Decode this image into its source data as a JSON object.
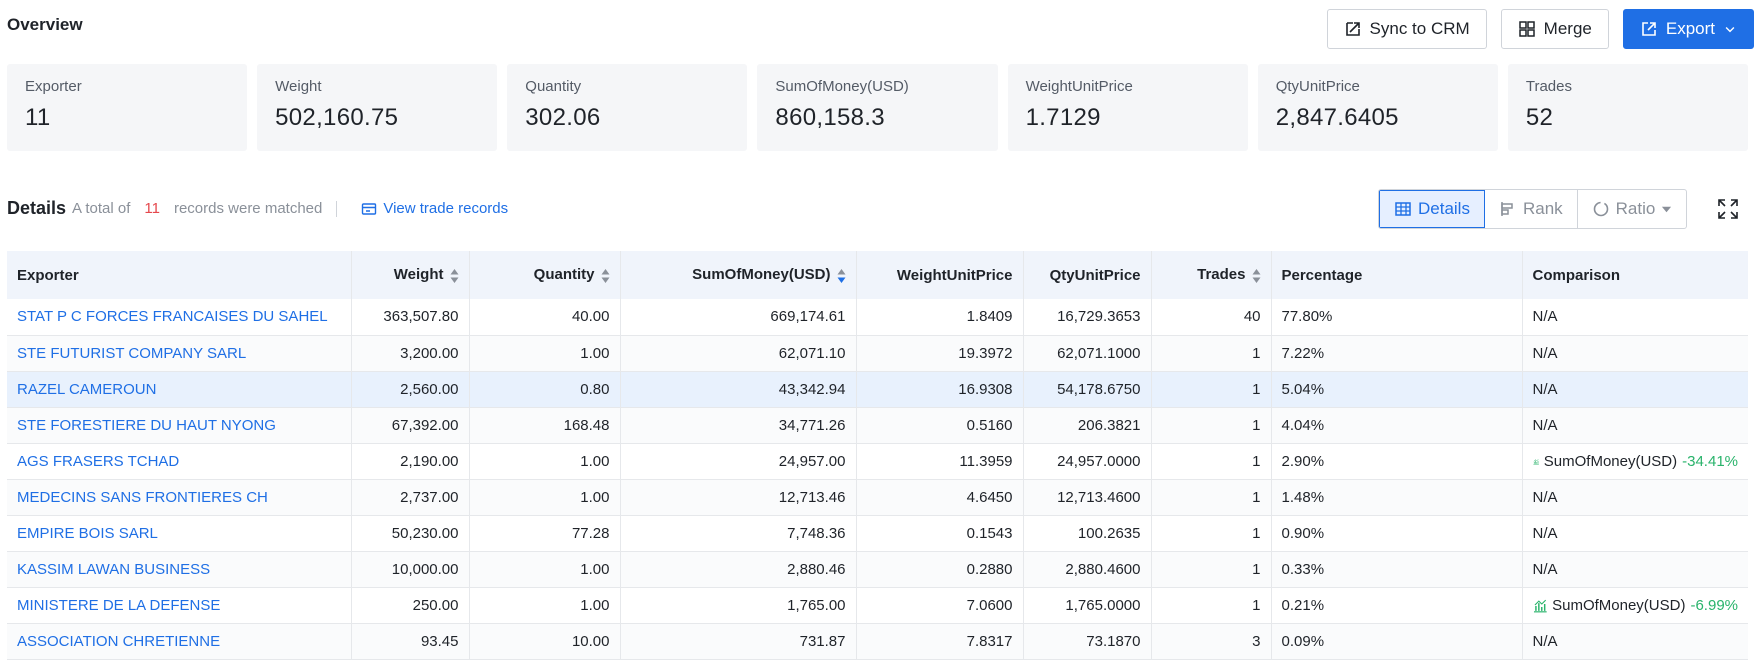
{
  "overview": {
    "title": "Overview",
    "actions": {
      "sync_label": "Sync to CRM",
      "merge_label": "Merge",
      "export_label": "Export"
    }
  },
  "stats": [
    {
      "label": "Exporter",
      "value": "11"
    },
    {
      "label": "Weight",
      "value": "502,160.75"
    },
    {
      "label": "Quantity",
      "value": "302.06"
    },
    {
      "label": "SumOfMoney(USD)",
      "value": "860,158.3"
    },
    {
      "label": "WeightUnitPrice",
      "value": "1.7129"
    },
    {
      "label": "QtyUnitPrice",
      "value": "2,847.6405"
    },
    {
      "label": "Trades",
      "value": "52"
    }
  ],
  "details": {
    "title": "Details",
    "prefix": "A total of",
    "count": "11",
    "suffix": "records were matched",
    "view_link": "View trade records",
    "views": {
      "details": "Details",
      "rank": "Rank",
      "ratio": "Ratio"
    }
  },
  "table": {
    "headers": {
      "exporter": "Exporter",
      "weight": "Weight",
      "quantity": "Quantity",
      "sum": "SumOfMoney(USD)",
      "wup": "WeightUnitPrice",
      "qup": "QtyUnitPrice",
      "trades": "Trades",
      "percentage": "Percentage",
      "comparison": "Comparison"
    },
    "rows": [
      {
        "exporter": "STAT P C FORCES FRANCAISES DU SAHEL",
        "weight": "363,507.80",
        "quantity": "40.00",
        "sum": "669,174.61",
        "wup": "1.8409",
        "qup": "16,729.3653",
        "trades": "40",
        "percentage": "77.80%",
        "comparison": "N/A",
        "cmp_pct": ""
      },
      {
        "exporter": "STE FUTURIST COMPANY SARL",
        "weight": "3,200.00",
        "quantity": "1.00",
        "sum": "62,071.10",
        "wup": "19.3972",
        "qup": "62,071.1000",
        "trades": "1",
        "percentage": "7.22%",
        "comparison": "N/A",
        "cmp_pct": ""
      },
      {
        "exporter": "RAZEL CAMEROUN",
        "weight": "2,560.00",
        "quantity": "0.80",
        "sum": "43,342.94",
        "wup": "16.9308",
        "qup": "54,178.6750",
        "trades": "1",
        "percentage": "5.04%",
        "comparison": "N/A",
        "cmp_pct": ""
      },
      {
        "exporter": "STE FORESTIERE DU HAUT NYONG",
        "weight": "67,392.00",
        "quantity": "168.48",
        "sum": "34,771.26",
        "wup": "0.5160",
        "qup": "206.3821",
        "trades": "1",
        "percentage": "4.04%",
        "comparison": "N/A",
        "cmp_pct": ""
      },
      {
        "exporter": "AGS FRASERS TCHAD",
        "weight": "2,190.00",
        "quantity": "1.00",
        "sum": "24,957.00",
        "wup": "11.3959",
        "qup": "24,957.0000",
        "trades": "1",
        "percentage": "2.90%",
        "comparison": "SumOfMoney(USD)",
        "cmp_pct": "-34.41%"
      },
      {
        "exporter": "MEDECINS SANS FRONTIERES CH",
        "weight": "2,737.00",
        "quantity": "1.00",
        "sum": "12,713.46",
        "wup": "4.6450",
        "qup": "12,713.4600",
        "trades": "1",
        "percentage": "1.48%",
        "comparison": "N/A",
        "cmp_pct": ""
      },
      {
        "exporter": "EMPIRE BOIS SARL",
        "weight": "50,230.00",
        "quantity": "77.28",
        "sum": "7,748.36",
        "wup": "0.1543",
        "qup": "100.2635",
        "trades": "1",
        "percentage": "0.90%",
        "comparison": "N/A",
        "cmp_pct": ""
      },
      {
        "exporter": "KASSIM LAWAN BUSINESS",
        "weight": "10,000.00",
        "quantity": "1.00",
        "sum": "2,880.46",
        "wup": "0.2880",
        "qup": "2,880.4600",
        "trades": "1",
        "percentage": "0.33%",
        "comparison": "N/A",
        "cmp_pct": ""
      },
      {
        "exporter": "MINISTERE DE LA DEFENSE",
        "weight": "250.00",
        "quantity": "1.00",
        "sum": "1,765.00",
        "wup": "7.0600",
        "qup": "1,765.0000",
        "trades": "1",
        "percentage": "0.21%",
        "comparison": "SumOfMoney(USD)",
        "cmp_pct": "-6.99%"
      },
      {
        "exporter": "ASSOCIATION CHRETIENNE",
        "weight": "93.45",
        "quantity": "10.00",
        "sum": "731.87",
        "wup": "7.8317",
        "qup": "73.1870",
        "trades": "3",
        "percentage": "0.09%",
        "comparison": "N/A",
        "cmp_pct": ""
      }
    ]
  }
}
